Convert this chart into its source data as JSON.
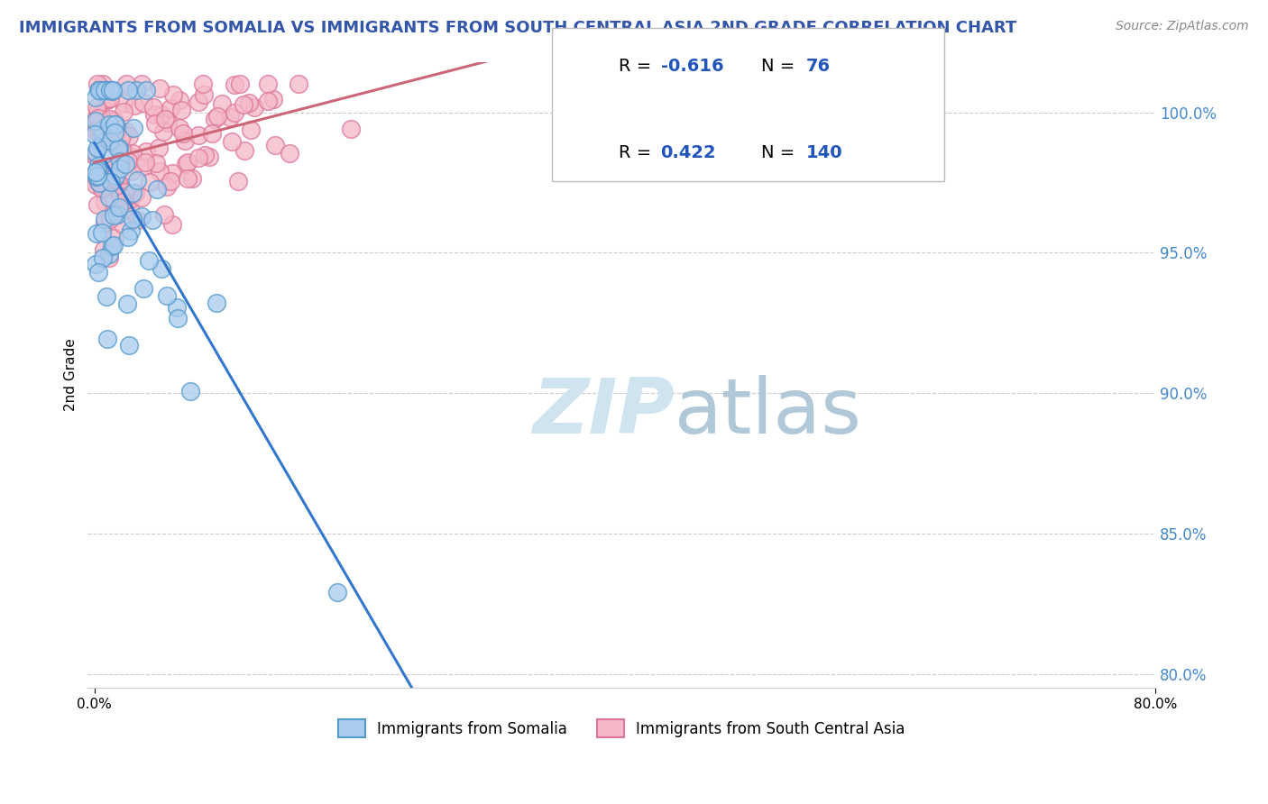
{
  "title": "IMMIGRANTS FROM SOMALIA VS IMMIGRANTS FROM SOUTH CENTRAL ASIA 2ND GRADE CORRELATION CHART",
  "source": "Source: ZipAtlas.com",
  "ylabel": "2nd Grade",
  "yticks": [
    80.0,
    85.0,
    90.0,
    95.0,
    100.0
  ],
  "ytick_labels": [
    "80.0%",
    "85.0%",
    "90.0%",
    "95.0%",
    "100.0%"
  ],
  "xlim": [
    -0.5,
    80.0
  ],
  "ylim": [
    79.5,
    101.8
  ],
  "r_somalia": -0.616,
  "n_somalia": 76,
  "r_sca": 0.422,
  "n_sca": 140,
  "color_somalia_face": "#aaccee",
  "color_somalia_edge": "#5599cc",
  "color_sca_face": "#f5b8c8",
  "color_sca_edge": "#dd7799",
  "color_somalia_line": "#3377cc",
  "color_sca_line": "#cc6677",
  "watermark_color": "#d0e4f0",
  "legend_label_somalia": "Immigrants from Somalia",
  "legend_label_sca": "Immigrants from South Central Asia",
  "title_color": "#3355aa",
  "source_color": "#888888",
  "r_color": "#2255bb",
  "ytick_color": "#4488cc",
  "grid_color": "#cccccc"
}
